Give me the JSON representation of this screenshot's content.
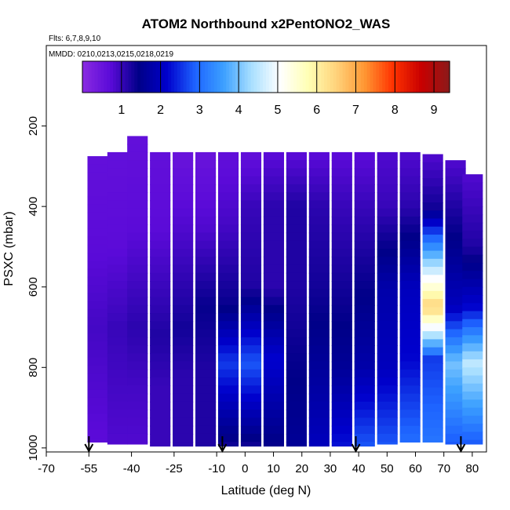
{
  "chart_data": {
    "type": "heatmap",
    "title": "ATOM2 Northbound x2PentONO2_WAS",
    "subtitle_flights": "Flts: 6,7,8,9,10",
    "subtitle_dates": "MMDD: 0210,0213,0215,0218,0219",
    "xlabel": "Latitude (deg N)",
    "ylabel": "PSXC (mbar)",
    "xlim": [
      -70,
      85
    ],
    "ylim": [
      1010,
      0
    ],
    "x_ticks": [
      -70,
      -55,
      -40,
      -25,
      -10,
      0,
      10,
      20,
      30,
      40,
      50,
      60,
      70,
      80
    ],
    "y_ticks": [
      200,
      400,
      600,
      800,
      1000
    ],
    "colorbar": {
      "ticks": [
        1,
        2,
        3,
        4,
        5,
        6,
        7,
        8,
        9
      ],
      "range": [
        0,
        9.4
      ],
      "colors": [
        "#8a2be2",
        "#5a0ad8",
        "#000088",
        "#0000cc",
        "#1e64ff",
        "#3ca0ff",
        "#aae0ff",
        "#ffffff",
        "#ffffb4",
        "#ffd27a",
        "#ff9632",
        "#ff3200",
        "#c80000",
        "#8b1a1a"
      ]
    },
    "curtain_columns": [
      {
        "lat": -52,
        "top": 275,
        "bottom": 985,
        "levels": [
          [
            275,
            0.6
          ],
          [
            500,
            0.7
          ],
          [
            700,
            0.9
          ],
          [
            850,
            0.8
          ],
          [
            985,
            0.7
          ]
        ]
      },
      {
        "lat": -45,
        "top": 265,
        "bottom": 990,
        "levels": [
          [
            265,
            0.6
          ],
          [
            500,
            0.7
          ],
          [
            700,
            1.0
          ],
          [
            850,
            0.9
          ],
          [
            990,
            0.8
          ]
        ]
      },
      {
        "lat": -38,
        "top": 225,
        "bottom": 990,
        "levels": [
          [
            225,
            0.6
          ],
          [
            450,
            0.7
          ],
          [
            700,
            1.1
          ],
          [
            850,
            0.9
          ],
          [
            990,
            0.8
          ]
        ]
      },
      {
        "lat": -30,
        "top": 265,
        "bottom": 995,
        "levels": [
          [
            265,
            0.6
          ],
          [
            450,
            0.7
          ],
          [
            720,
            1.2
          ],
          [
            850,
            1.0
          ],
          [
            995,
            1.0
          ]
        ]
      },
      {
        "lat": -22,
        "top": 265,
        "bottom": 995,
        "levels": [
          [
            265,
            0.5
          ],
          [
            450,
            0.8
          ],
          [
            700,
            1.3
          ],
          [
            820,
            1.1
          ],
          [
            995,
            1.1
          ]
        ]
      },
      {
        "lat": -14,
        "top": 265,
        "bottom": 995,
        "levels": [
          [
            265,
            0.5
          ],
          [
            450,
            0.8
          ],
          [
            650,
            1.4
          ],
          [
            800,
            1.2
          ],
          [
            995,
            1.2
          ]
        ]
      },
      {
        "lat": -6,
        "top": 265,
        "bottom": 995,
        "levels": [
          [
            265,
            0.6
          ],
          [
            450,
            0.9
          ],
          [
            650,
            1.4
          ],
          [
            790,
            2.6
          ],
          [
            995,
            1.3
          ]
        ]
      },
      {
        "lat": 2,
        "top": 265,
        "bottom": 995,
        "levels": [
          [
            265,
            0.6
          ],
          [
            400,
            1.0
          ],
          [
            600,
            1.2
          ],
          [
            790,
            2.8
          ],
          [
            995,
            1.3
          ]
        ]
      },
      {
        "lat": 10,
        "top": 265,
        "bottom": 995,
        "levels": [
          [
            265,
            0.7
          ],
          [
            400,
            1.1
          ],
          [
            600,
            1.1
          ],
          [
            780,
            2.2
          ],
          [
            995,
            1.4
          ]
        ]
      },
      {
        "lat": 18,
        "top": 265,
        "bottom": 995,
        "levels": [
          [
            265,
            0.7
          ],
          [
            400,
            1.2
          ],
          [
            600,
            1.2
          ],
          [
            780,
            1.4
          ],
          [
            995,
            1.6
          ]
        ]
      },
      {
        "lat": 26,
        "top": 265,
        "bottom": 995,
        "levels": [
          [
            265,
            0.7
          ],
          [
            400,
            1.1
          ],
          [
            600,
            1.3
          ],
          [
            780,
            1.6
          ],
          [
            995,
            2.0
          ]
        ]
      },
      {
        "lat": 34,
        "top": 265,
        "bottom": 995,
        "levels": [
          [
            265,
            0.7
          ],
          [
            400,
            1.0
          ],
          [
            600,
            1.3
          ],
          [
            800,
            1.6
          ],
          [
            995,
            2.3
          ]
        ]
      },
      {
        "lat": 42,
        "top": 265,
        "bottom": 995,
        "levels": [
          [
            265,
            0.7
          ],
          [
            400,
            1.0
          ],
          [
            600,
            1.4
          ],
          [
            800,
            1.8
          ],
          [
            995,
            2.8
          ]
        ]
      },
      {
        "lat": 50,
        "top": 265,
        "bottom": 990,
        "levels": [
          [
            265,
            0.8
          ],
          [
            400,
            1.0
          ],
          [
            600,
            1.8
          ],
          [
            800,
            2.0
          ],
          [
            990,
            2.8
          ]
        ]
      },
      {
        "lat": 58,
        "top": 265,
        "bottom": 985,
        "levels": [
          [
            265,
            0.8
          ],
          [
            400,
            1.1
          ],
          [
            600,
            2.0
          ],
          [
            780,
            2.2
          ],
          [
            985,
            3.0
          ]
        ]
      },
      {
        "lat": 66,
        "top": 270,
        "bottom": 985,
        "levels": [
          [
            270,
            0.8
          ],
          [
            400,
            1.3
          ],
          [
            650,
            6.5
          ],
          [
            780,
            2.6
          ],
          [
            985,
            3.1
          ]
        ]
      },
      {
        "lat": 74,
        "top": 285,
        "bottom": 990,
        "levels": [
          [
            285,
            0.8
          ],
          [
            400,
            1.2
          ],
          [
            650,
            2.0
          ],
          [
            790,
            4.0
          ],
          [
            990,
            2.8
          ]
        ]
      },
      {
        "lat": 80,
        "top": 320,
        "bottom": 990,
        "levels": [
          [
            320,
            0.8
          ],
          [
            500,
            1.2
          ],
          [
            650,
            2.2
          ],
          [
            790,
            4.5
          ],
          [
            990,
            2.8
          ]
        ]
      }
    ],
    "flight_markers_lat": [
      -55,
      -8,
      39,
      76
    ]
  }
}
